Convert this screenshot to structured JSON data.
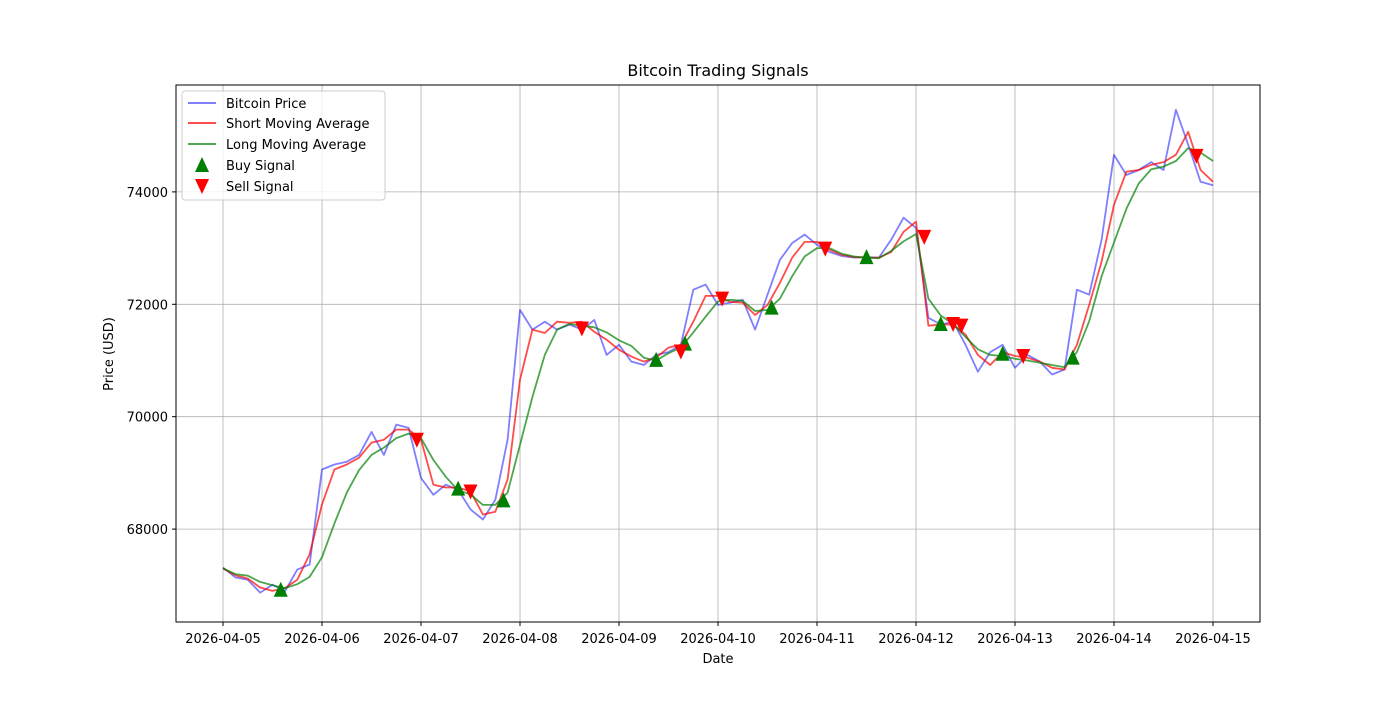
{
  "chart_data": {
    "type": "line",
    "title": "Bitcoin Trading Signals",
    "xlabel": "Date",
    "ylabel": "Price (USD)",
    "xlim": [
      "2026-04-04 12:36",
      "2026-04-15 11:24"
    ],
    "ylim": [
      66347,
      75902
    ],
    "grid": true,
    "legend_position": "top-left",
    "x_ticks": [
      "2026-04-05",
      "2026-04-06",
      "2026-04-07",
      "2026-04-08",
      "2026-04-09",
      "2026-04-10",
      "2026-04-11",
      "2026-04-12",
      "2026-04-13",
      "2026-04-14",
      "2026-04-15"
    ],
    "y_ticks": [
      68000,
      70000,
      72000,
      74000
    ],
    "colors": {
      "price": "#0000ff",
      "short_ma": "#ff0000",
      "long_ma": "#008000",
      "buy": "#008000",
      "sell": "#ff0000"
    },
    "x": [
      "2026-04-05 00:00",
      "2026-04-05 03:00",
      "2026-04-05 06:00",
      "2026-04-05 09:00",
      "2026-04-05 12:00",
      "2026-04-05 15:00",
      "2026-04-05 18:00",
      "2026-04-05 21:00",
      "2026-04-06 00:00",
      "2026-04-06 03:00",
      "2026-04-06 06:00",
      "2026-04-06 09:00",
      "2026-04-06 12:00",
      "2026-04-06 15:00",
      "2026-04-06 18:00",
      "2026-04-06 21:00",
      "2026-04-07 00:00",
      "2026-04-07 03:00",
      "2026-04-07 06:00",
      "2026-04-07 09:00",
      "2026-04-07 12:00",
      "2026-04-07 15:00",
      "2026-04-07 18:00",
      "2026-04-07 21:00",
      "2026-04-08 00:00",
      "2026-04-08 03:00",
      "2026-04-08 06:00",
      "2026-04-08 09:00",
      "2026-04-08 12:00",
      "2026-04-08 15:00",
      "2026-04-08 18:00",
      "2026-04-08 21:00",
      "2026-04-09 00:00",
      "2026-04-09 03:00",
      "2026-04-09 06:00",
      "2026-04-09 09:00",
      "2026-04-09 12:00",
      "2026-04-09 15:00",
      "2026-04-09 18:00",
      "2026-04-09 21:00",
      "2026-04-10 00:00",
      "2026-04-10 03:00",
      "2026-04-10 06:00",
      "2026-04-10 09:00",
      "2026-04-10 12:00",
      "2026-04-10 15:00",
      "2026-04-10 18:00",
      "2026-04-10 21:00",
      "2026-04-11 00:00",
      "2026-04-11 03:00",
      "2026-04-11 06:00",
      "2026-04-11 09:00",
      "2026-04-11 12:00",
      "2026-04-11 15:00",
      "2026-04-11 18:00",
      "2026-04-11 21:00",
      "2026-04-12 00:00",
      "2026-04-12 03:00",
      "2026-04-12 06:00",
      "2026-04-12 09:00",
      "2026-04-12 12:00",
      "2026-04-12 15:00",
      "2026-04-12 18:00",
      "2026-04-12 21:00",
      "2026-04-13 00:00",
      "2026-04-13 03:00",
      "2026-04-13 06:00",
      "2026-04-13 09:00",
      "2026-04-13 12:00",
      "2026-04-13 15:00",
      "2026-04-13 18:00",
      "2026-04-13 21:00",
      "2026-04-14 00:00",
      "2026-04-14 03:00",
      "2026-04-14 06:00",
      "2026-04-14 09:00",
      "2026-04-14 12:00",
      "2026-04-14 15:00",
      "2026-04-14 18:00",
      "2026-04-14 21:00",
      "2026-04-15 00:00"
    ],
    "series": [
      {
        "name": "Bitcoin Price",
        "values": [
          67315,
          67140,
          67100,
          66870,
          67010,
          66890,
          67280,
          67370,
          69060,
          69150,
          69200,
          69320,
          69730,
          69320,
          69860,
          69800,
          68910,
          68610,
          68790,
          68700,
          68350,
          68170,
          68520,
          69590,
          71900,
          71550,
          71690,
          71550,
          71640,
          71550,
          71720,
          71100,
          71280,
          70980,
          70920,
          71100,
          71150,
          71280,
          72260,
          72350,
          71990,
          72030,
          72080,
          71550,
          72170,
          72790,
          73090,
          73240,
          73060,
          72930,
          72860,
          72830,
          72840,
          72830,
          73150,
          73540,
          73360,
          71760,
          71640,
          71690,
          71280,
          70800,
          71150,
          71280,
          70870,
          71100,
          70980,
          70750,
          70840,
          72260,
          72170,
          73150,
          74660,
          74300,
          74390,
          74530,
          74390,
          75460,
          74840,
          74180,
          74120
        ]
      },
      {
        "name": "Short Moving Average",
        "values": [
          67300,
          67180,
          67120,
          66960,
          66900,
          66950,
          67100,
          67550,
          68440,
          69060,
          69150,
          69270,
          69540,
          69590,
          69770,
          69770,
          69590,
          68790,
          68740,
          68740,
          68670,
          68260,
          68310,
          68880,
          70660,
          71550,
          71490,
          71690,
          71670,
          71690,
          71510,
          71370,
          71190,
          71070,
          70980,
          71050,
          71230,
          71280,
          71690,
          72150,
          72150,
          72040,
          72030,
          71810,
          71990,
          72380,
          72830,
          73110,
          73110,
          72970,
          72880,
          72840,
          72830,
          72830,
          72930,
          73290,
          73470,
          71620,
          71640,
          71640,
          71460,
          71100,
          70920,
          71150,
          71080,
          71050,
          70980,
          70870,
          70840,
          71280,
          71990,
          72760,
          73770,
          74360,
          74390,
          74480,
          74530,
          74660,
          75070,
          74390,
          74180
        ]
      },
      {
        "name": "Long Moving Average",
        "values": [
          67300,
          67200,
          67170,
          67060,
          67000,
          66950,
          67020,
          67150,
          67500,
          68100,
          68650,
          69050,
          69320,
          69450,
          69620,
          69700,
          69620,
          69230,
          68930,
          68690,
          68620,
          68430,
          68430,
          68650,
          69500,
          70350,
          71100,
          71550,
          71650,
          71620,
          71590,
          71500,
          71360,
          71260,
          71050,
          71000,
          71130,
          71230,
          71500,
          71780,
          72050,
          72080,
          72060,
          71880,
          71900,
          72100,
          72500,
          72850,
          73000,
          73000,
          72900,
          72850,
          72830,
          72820,
          72950,
          73120,
          73250,
          72100,
          71800,
          71650,
          71420,
          71200,
          71100,
          71080,
          71030,
          71000,
          70960,
          70920,
          70880,
          71150,
          71700,
          72500,
          73100,
          73700,
          74150,
          74400,
          74450,
          74550,
          74780,
          74700,
          74550
        ]
      }
    ],
    "buy_signals": {
      "name": "Buy Signal",
      "x": [
        "2026-04-05 14:00",
        "2026-04-07 09:00",
        "2026-04-07 20:00",
        "2026-04-09 09:00",
        "2026-04-09 16:00",
        "2026-04-10 13:00",
        "2026-04-11 12:00",
        "2026-04-12 06:00",
        "2026-04-12 21:00",
        "2026-04-13 14:00"
      ],
      "y": [
        66920,
        68720,
        68510,
        71010,
        71300,
        71940,
        72840,
        71650,
        71120,
        71050
      ]
    },
    "sell_signals": {
      "name": "Sell Signal",
      "x": [
        "2026-04-06 23:00",
        "2026-04-07 12:00",
        "2026-04-08 15:00",
        "2026-04-09 15:00",
        "2026-04-10 01:00",
        "2026-04-11 02:00",
        "2026-04-12 02:00",
        "2026-04-12 09:00",
        "2026-04-12 11:00",
        "2026-04-13 02:00",
        "2026-04-14 20:00"
      ],
      "y": [
        69590,
        68670,
        71570,
        71160,
        72100,
        72990,
        73200,
        71650,
        71620,
        71080,
        74640
      ]
    }
  }
}
